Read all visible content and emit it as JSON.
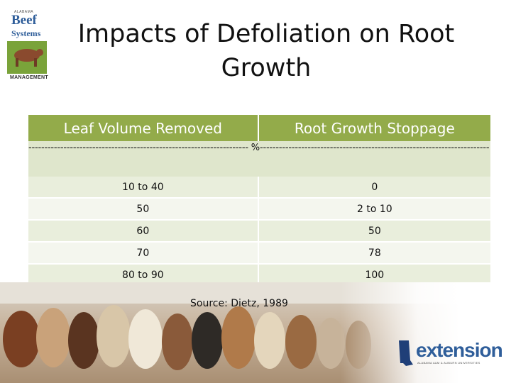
{
  "logo": {
    "line1": "ALABAMA",
    "line2": "Beef",
    "line3": "Systems",
    "line4": "MANAGEMENT"
  },
  "title": "Impacts of Defoliation on Root Growth",
  "table": {
    "headers": [
      "Leaf Volume Removed",
      "Root Growth Stoppage"
    ],
    "unit_row": "--------------------------------------------------------------------- %------------------------------------------------------------------------",
    "rows": [
      [
        "10 to 40",
        "0"
      ],
      [
        "50",
        "2 to 10"
      ],
      [
        "60",
        "50"
      ],
      [
        "70",
        "78"
      ],
      [
        "80 to 90",
        "100"
      ]
    ]
  },
  "source": "Source: Dietz, 1989",
  "extension": {
    "word": "extension",
    "tag": "ALABAMA A&M & AUBURN UNIVERSITIES"
  },
  "colors": {
    "header_bg": "#93ab4a",
    "unit_bg": "#dfe6cc",
    "row_a_bg": "#e9eedc",
    "row_b_bg": "#f4f6ee",
    "brand_blue": "#2f5e9a"
  }
}
